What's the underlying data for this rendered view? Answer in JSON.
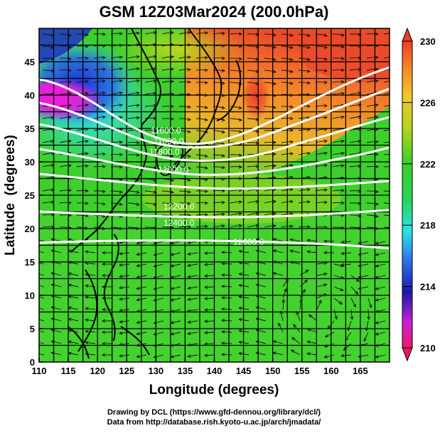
{
  "title": "GSM 12Z03Mar2024 (200.0hPa)",
  "xlabel": "Longitude (degrees)",
  "ylabel": "Latitude  (degrees)",
  "credit_line1": "Drawing by DCL (https://www.gfd-dennou.org/library/dcl/)",
  "credit_line2": "Data from http://database.rish.kyoto-u.ac.jp/arch/jmadata/",
  "x_ticks": [
    "110",
    "115",
    "120",
    "125",
    "130",
    "135",
    "140",
    "145",
    "150",
    "155",
    "160",
    "165"
  ],
  "y_ticks": [
    "0",
    "5",
    "10",
    "15",
    "20",
    "25",
    "30",
    "35",
    "40",
    "45"
  ],
  "colorbar": {
    "labels": [
      "230",
      "226",
      "222",
      "218",
      "214",
      "210"
    ],
    "min": 210,
    "max": 230,
    "colors": [
      "#e8195f",
      "#d11fd7",
      "#1a1aa8",
      "#2d6ee6",
      "#2ee0e8",
      "#28d45a",
      "#3ccf2a",
      "#b4d41e",
      "#f2c72e",
      "#f58a2a",
      "#ea3d2a"
    ]
  },
  "contour_labels": [
    "11600.0",
    "11600.0",
    "11800.0",
    "12000.0",
    "12200.0",
    "12400.0",
    "12600.0"
  ],
  "chart_data": {
    "type": "heatmap",
    "title": "GSM 12Z03Mar2024 (200.0hPa)",
    "xlabel": "Longitude (degrees)",
    "ylabel": "Latitude  (degrees)",
    "xlim": [
      110,
      170
    ],
    "ylim": [
      0,
      50
    ],
    "colorbar_range": [
      210,
      230
    ],
    "contour_levels": [
      11600,
      11800,
      12000,
      12200,
      12400,
      12600
    ]
  }
}
